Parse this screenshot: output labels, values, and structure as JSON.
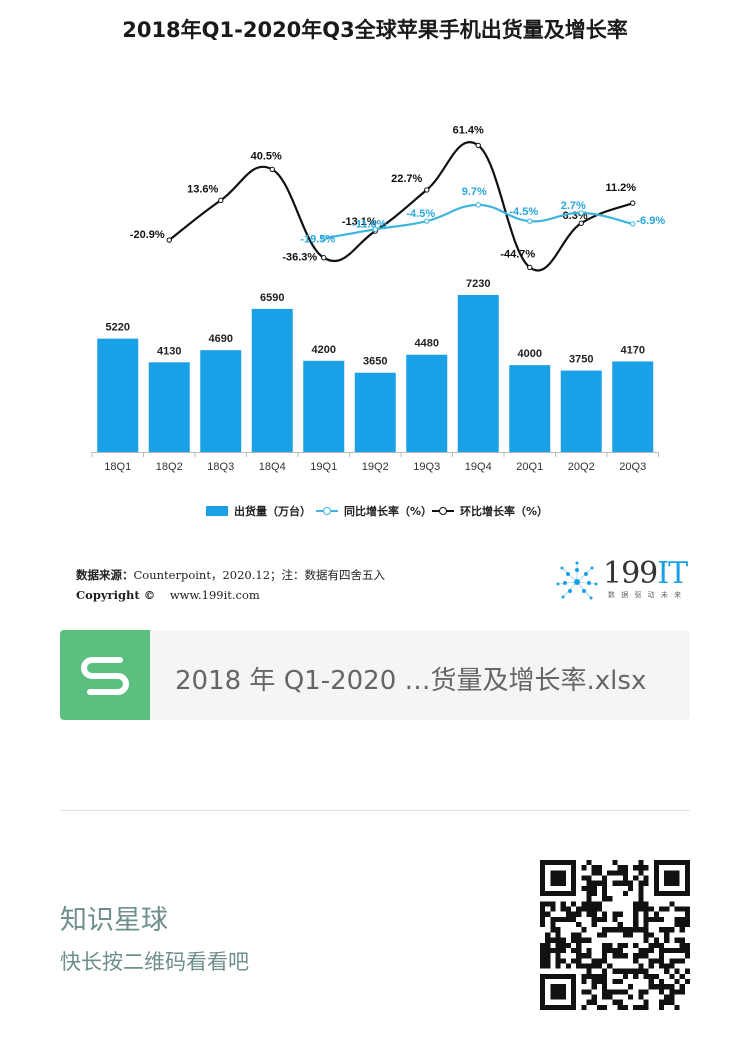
{
  "chart": {
    "title": "2018年Q1-2020年Q3全球苹果手机出货量及增长率",
    "legend": {
      "bar": "出货量（万台）",
      "yoy": "同比增长率（%）",
      "qoq": "环比增长率（%）"
    },
    "colors": {
      "bar": "#1aa0e6",
      "yoy": "#3fb4df",
      "qoq": "#111111"
    }
  },
  "chart_data": {
    "type": "bar",
    "categories": [
      "18Q1",
      "18Q2",
      "18Q3",
      "18Q4",
      "19Q1",
      "19Q2",
      "19Q3",
      "19Q4",
      "20Q1",
      "20Q2",
      "20Q3"
    ],
    "series": [
      {
        "name": "出货量（万台）",
        "type": "bar",
        "values": [
          5220,
          4130,
          4690,
          6590,
          4200,
          3650,
          4480,
          7230,
          4000,
          3750,
          4170
        ]
      },
      {
        "name": "同比增长率（%）",
        "type": "line",
        "values": [
          null,
          null,
          null,
          null,
          -19.5,
          -11.6,
          -4.5,
          9.7,
          -4.5,
          2.7,
          -6.9
        ]
      },
      {
        "name": "环比增长率（%）",
        "type": "line",
        "values": [
          null,
          -20.9,
          13.6,
          40.5,
          -36.3,
          -13.1,
          22.7,
          61.4,
          -44.7,
          -6.3,
          11.2
        ]
      }
    ],
    "bar_labels": [
      "5220",
      "4130",
      "4690",
      "6590",
      "4200",
      "3650",
      "4480",
      "7230",
      "4000",
      "3750",
      "4170"
    ],
    "yoy_labels": [
      null,
      null,
      null,
      null,
      "-19.5%",
      "-11.6%",
      "-4.5%",
      "9.7%",
      "-4.5%",
      "2.7%",
      "-6.9%"
    ],
    "qoq_labels": [
      null,
      "-20.9%",
      "13.6%",
      "40.5%",
      "-36.3%",
      "-13.1%",
      "22.7%",
      "61.4%",
      "-44.7%",
      "-6.3%",
      "11.2%"
    ]
  },
  "source": {
    "label": "数据来源：",
    "text": "Counterpoint，2020.12；注：数据有四舍五入",
    "copyright_label": "Copyright ©",
    "url": "www.199it.com"
  },
  "brand": {
    "name": "199",
    "accent": "IT",
    "tagline": "数 据 驱 动 未 来"
  },
  "file": {
    "name": "2018 年 Q1-2020 …货量及增长率.xlsx",
    "icon": "s-file-icon"
  },
  "promo": {
    "title": "知识星球",
    "subtitle": "快长按二维码看看吧"
  }
}
